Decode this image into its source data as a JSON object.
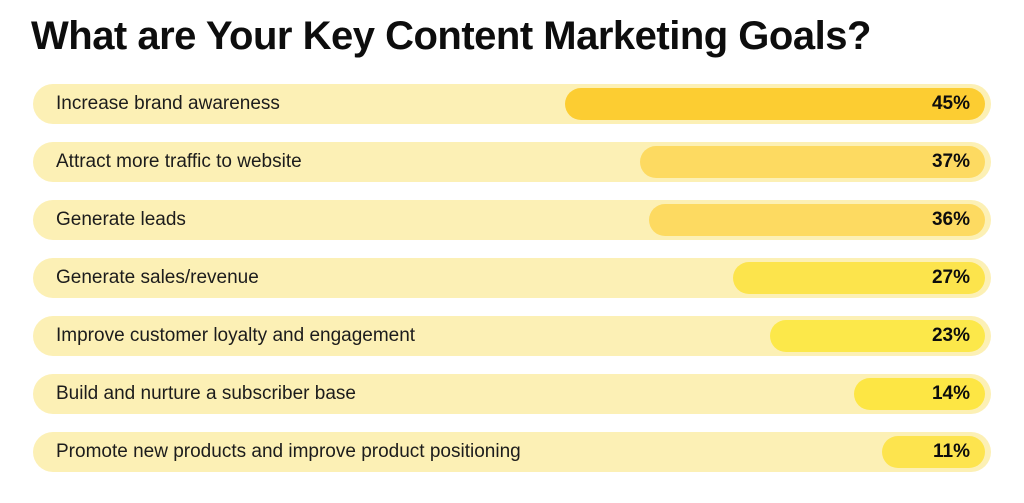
{
  "title": "What are Your Key Content Marketing Goals?",
  "colors": {
    "page_background": "#ffffff",
    "track": "#fcf0b5",
    "title_text": "#0d0d0d",
    "label_text": "#1c1c1c",
    "value_text": "#0d0d0d"
  },
  "chart_data": {
    "type": "bar",
    "orientation": "horizontal",
    "title": "What are Your Key Content Marketing Goals?",
    "categories": [
      "Increase brand awareness",
      "Attract more traffic to website",
      "Generate leads",
      "Generate sales/revenue",
      "Improve customer loyalty and engagement",
      "Build and nurture a subscriber base",
      "Promote new products and improve product positioning"
    ],
    "values": [
      45,
      37,
      36,
      27,
      23,
      14,
      11
    ],
    "value_labels": [
      "45%",
      "37%",
      "36%",
      "27%",
      "23%",
      "14%",
      "11%"
    ],
    "unit": "%",
    "bar_colors": [
      "#fccd32",
      "#fdda61",
      "#fdda61",
      "#fce44c",
      "#fce84a",
      "#fde644",
      "#fde44e"
    ],
    "xlabel": "",
    "ylabel": "",
    "xlim": [
      0,
      100
    ],
    "grid": false,
    "legend": false,
    "bars_right_aligned": true
  }
}
